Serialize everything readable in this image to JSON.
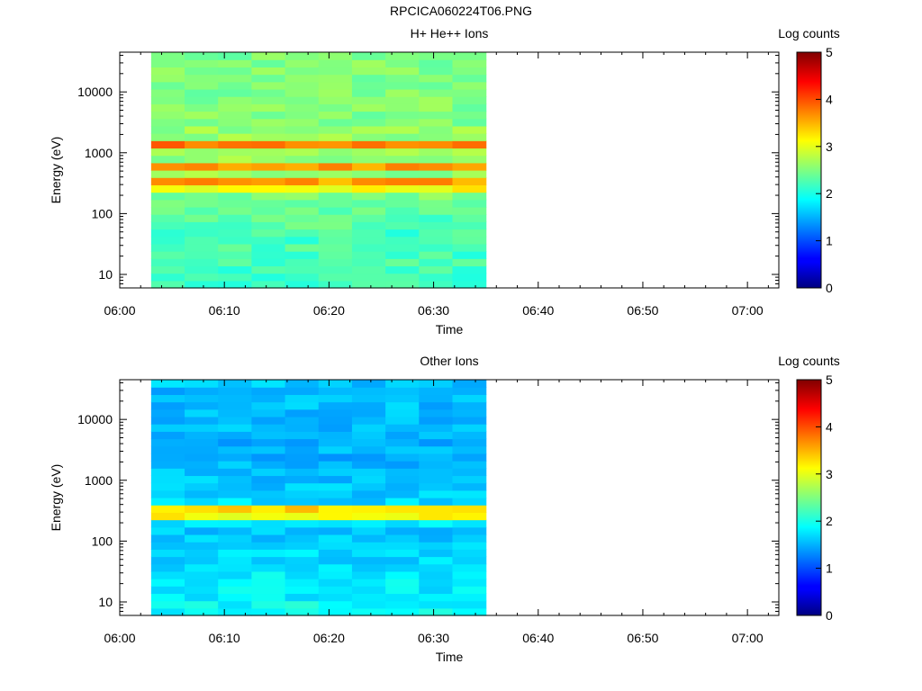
{
  "figure_title": "RPCICA060224T06.PNG",
  "chart_data": [
    {
      "type": "heatmap",
      "title": "H+ He++ Ions",
      "xlabel": "Time",
      "ylabel": "Energy (eV)",
      "colorbar_label": "Log counts",
      "colorbar_ticks": [
        "0",
        "1",
        "2",
        "3",
        "4",
        "5"
      ],
      "clim": [
        0,
        5
      ],
      "x_ticks": [
        "06:00",
        "06:10",
        "06:20",
        "06:30",
        "06:40",
        "06:50",
        "07:00"
      ],
      "xlim": [
        "06:00",
        "07:03"
      ],
      "y_scale": "log",
      "y_ticks": [
        "10",
        "100",
        "1000",
        "10000"
      ],
      "ylim": [
        6,
        45000
      ],
      "data_time_range": [
        "06:03",
        "06:35"
      ],
      "time_bins": 10,
      "energy_bins": 32,
      "profile_log_counts": [
        2.2,
        2.2,
        2.2,
        2.25,
        2.2,
        2.25,
        2.2,
        2.2,
        2.3,
        2.3,
        2.4,
        2.4,
        2.5,
        3.1,
        3.6,
        2.6,
        3.6,
        2.6,
        2.6,
        3.8,
        2.6,
        2.6,
        2.5,
        2.5,
        2.5,
        2.5,
        2.5,
        2.5,
        2.5,
        2.5,
        2.5,
        2.5
      ]
    },
    {
      "type": "heatmap",
      "title": "Other Ions",
      "xlabel": "Time",
      "ylabel": "Energy (eV)",
      "colorbar_label": "Log counts",
      "colorbar_ticks": [
        "0",
        "1",
        "2",
        "3",
        "4",
        "5"
      ],
      "clim": [
        0,
        5
      ],
      "x_ticks": [
        "06:00",
        "06:10",
        "06:20",
        "06:30",
        "06:40",
        "06:50",
        "07:00"
      ],
      "xlim": [
        "06:00",
        "07:03"
      ],
      "y_scale": "log",
      "y_ticks": [
        "10",
        "100",
        "1000",
        "10000"
      ],
      "ylim": [
        6,
        45000
      ],
      "data_time_range": [
        "06:03",
        "06:35"
      ],
      "time_bins": 10,
      "energy_bins": 32,
      "profile_log_counts": [
        1.9,
        1.9,
        1.8,
        1.8,
        1.8,
        1.8,
        1.7,
        1.7,
        1.7,
        1.7,
        1.6,
        1.6,
        1.8,
        3.1,
        3.3,
        1.7,
        1.6,
        1.6,
        1.6,
        1.55,
        1.55,
        1.5,
        1.55,
        1.5,
        1.55,
        1.55,
        1.5,
        1.55,
        1.55,
        1.6,
        1.55,
        1.6
      ]
    }
  ]
}
